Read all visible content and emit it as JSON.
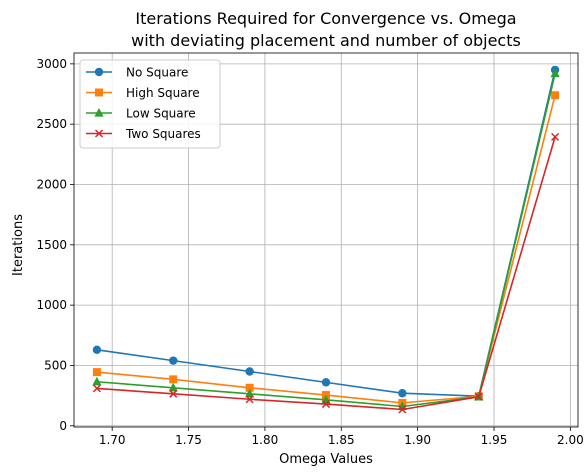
{
  "chart_data": {
    "type": "line",
    "title_line1": "Iterations Required for Convergence vs. Omega",
    "title_line2": "with deviating placement and number of objects",
    "xlabel": "Omega Values",
    "ylabel": "Iterations",
    "xlim": [
      1.675,
      2.005
    ],
    "ylim": [
      -10,
      3090
    ],
    "xticks": [
      1.7,
      1.75,
      1.8,
      1.85,
      1.9,
      1.95,
      2.0
    ],
    "xtick_labels": [
      "1.70",
      "1.75",
      "1.80",
      "1.85",
      "1.90",
      "1.95",
      "2.00"
    ],
    "yticks": [
      0,
      500,
      1000,
      1500,
      2000,
      2500,
      3000
    ],
    "ytick_labels": [
      "0",
      "500",
      "1000",
      "1500",
      "2000",
      "2500",
      "3000"
    ],
    "grid": true,
    "legend_position": "top-left",
    "x": [
      1.69,
      1.74,
      1.79,
      1.84,
      1.89,
      1.94,
      1.99
    ],
    "series": [
      {
        "name": "No Square",
        "color": "#1f77b4",
        "marker": "circle",
        "values": [
          630,
          540,
          450,
          360,
          270,
          245,
          2950
        ]
      },
      {
        "name": "High Square",
        "color": "#ff7f0e",
        "marker": "square",
        "values": [
          445,
          385,
          315,
          255,
          190,
          245,
          2740
        ]
      },
      {
        "name": "Low Square",
        "color": "#2ca02c",
        "marker": "triangle",
        "values": [
          365,
          315,
          265,
          215,
          160,
          240,
          2920
        ]
      },
      {
        "name": "Two Squares",
        "color": "#d62728",
        "marker": "x",
        "values": [
          310,
          265,
          220,
          180,
          135,
          240,
          2395
        ]
      }
    ]
  }
}
